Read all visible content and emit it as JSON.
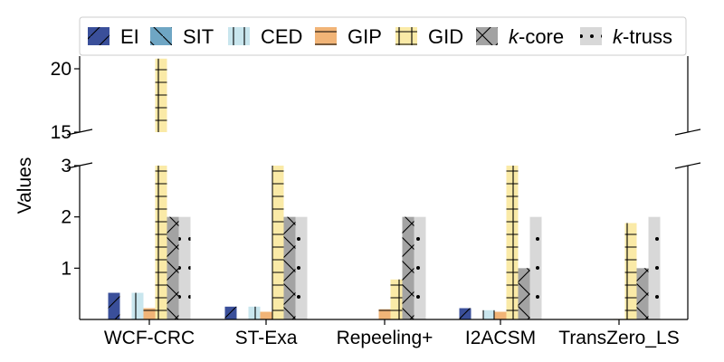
{
  "chart_data": {
    "type": "bar",
    "ylabel": "Values",
    "categories": [
      "WCF-CRC",
      "ST-Exa",
      "Repeeling+",
      "I2ACSM",
      "TransZero_LS"
    ],
    "broken_axis": {
      "upper_range": [
        15,
        21
      ],
      "upper_ticks": [
        "15",
        "20"
      ],
      "lower_range": [
        0,
        3
      ],
      "lower_ticks": [
        "1",
        "2",
        "3"
      ]
    },
    "legend_position": "top, above plot",
    "series": [
      {
        "name": "EI",
        "label_italic_part": "",
        "color": "#3a4f9a",
        "hatch": "diagonal",
        "values": [
          0.52,
          0.25,
          0.0,
          0.22,
          0.0
        ]
      },
      {
        "name": "SIT",
        "label_italic_part": "",
        "color": "#6fa6c4",
        "hatch": "backslash",
        "values": [
          0.0,
          0.0,
          0.0,
          0.0,
          0.0
        ]
      },
      {
        "name": "CED",
        "label_italic_part": "",
        "color": "#c9e6ee",
        "hatch": "vertical",
        "values": [
          0.52,
          0.25,
          0.0,
          0.18,
          0.0
        ]
      },
      {
        "name": "GIP",
        "label_italic_part": "",
        "color": "#f1b477",
        "hatch": "horizontal",
        "values": [
          0.22,
          0.15,
          0.2,
          0.15,
          0.01
        ]
      },
      {
        "name": "GID",
        "label_italic_part": "",
        "color": "#faeaa7",
        "hatch": "plus",
        "values": [
          20.8,
          3.2,
          0.78,
          3.2,
          1.88
        ]
      },
      {
        "name": "-core",
        "label_italic_part": "k",
        "color": "#a3a3a3",
        "hatch": "cross",
        "values": [
          2.0,
          2.0,
          2.0,
          1.0,
          1.0
        ]
      },
      {
        "name": "-truss",
        "label_italic_part": "k",
        "color": "#d8d8d8",
        "hatch": "dots",
        "values": [
          2.0,
          2.0,
          2.0,
          2.0,
          2.0
        ]
      }
    ]
  }
}
